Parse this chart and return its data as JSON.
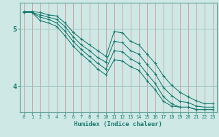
{
  "xlabel": "Humidex (Indice chaleur)",
  "bg_color": "#cde8e5",
  "grid_color_v": "#d4a0a0",
  "grid_color_h": "#9ec8c4",
  "line_color": "#1a7a6e",
  "axis_color": "#5a9a94",
  "xlim": [
    -0.5,
    23.5
  ],
  "ylim": [
    3.55,
    5.45
  ],
  "yticks": [
    4,
    5
  ],
  "xticks": [
    0,
    1,
    2,
    3,
    4,
    5,
    6,
    7,
    8,
    9,
    10,
    11,
    12,
    13,
    14,
    15,
    16,
    17,
    18,
    19,
    20,
    21,
    22,
    23
  ],
  "lines": [
    {
      "x": [
        0,
        1,
        2,
        3,
        4,
        5,
        6,
        7,
        8,
        9,
        10,
        11,
        12,
        13,
        14,
        15,
        16,
        17,
        18,
        19,
        20,
        21,
        22,
        23
      ],
      "y": [
        5.3,
        5.3,
        5.28,
        5.24,
        5.22,
        5.1,
        4.94,
        4.82,
        4.72,
        4.62,
        4.52,
        4.95,
        4.93,
        4.78,
        4.72,
        4.56,
        4.4,
        4.18,
        4.02,
        3.9,
        3.82,
        3.75,
        3.7,
        3.7
      ]
    },
    {
      "x": [
        0,
        1,
        2,
        3,
        4,
        5,
        6,
        7,
        8,
        9,
        10,
        11,
        12,
        13,
        14,
        15,
        16,
        17,
        18,
        19,
        20,
        21,
        22,
        23
      ],
      "y": [
        5.28,
        5.28,
        5.24,
        5.2,
        5.16,
        5.04,
        4.86,
        4.72,
        4.62,
        4.5,
        4.42,
        4.78,
        4.76,
        4.62,
        4.56,
        4.38,
        4.22,
        3.98,
        3.84,
        3.74,
        3.72,
        3.66,
        3.64,
        3.64
      ]
    },
    {
      "x": [
        0,
        1,
        2,
        3,
        4,
        5,
        6,
        7,
        8,
        9,
        10,
        11,
        12,
        13,
        14,
        15,
        16,
        17,
        18,
        19,
        20,
        21,
        22,
        23
      ],
      "y": [
        5.28,
        5.28,
        5.2,
        5.16,
        5.1,
        4.96,
        4.78,
        4.64,
        4.52,
        4.4,
        4.3,
        4.62,
        4.6,
        4.48,
        4.4,
        4.22,
        4.05,
        3.82,
        3.7,
        3.64,
        3.64,
        3.6,
        3.6,
        3.6
      ]
    },
    {
      "x": [
        0,
        1,
        2,
        3,
        4,
        5,
        6,
        7,
        8,
        9,
        10,
        11,
        12,
        13,
        14,
        15,
        16,
        17,
        18,
        19,
        20,
        21,
        22,
        23
      ],
      "y": [
        5.28,
        5.28,
        5.14,
        5.1,
        5.04,
        4.88,
        4.7,
        4.56,
        4.44,
        4.3,
        4.2,
        4.46,
        4.44,
        4.34,
        4.28,
        4.1,
        3.94,
        3.74,
        3.66,
        3.64,
        3.64,
        3.6,
        3.6,
        3.6
      ]
    }
  ]
}
